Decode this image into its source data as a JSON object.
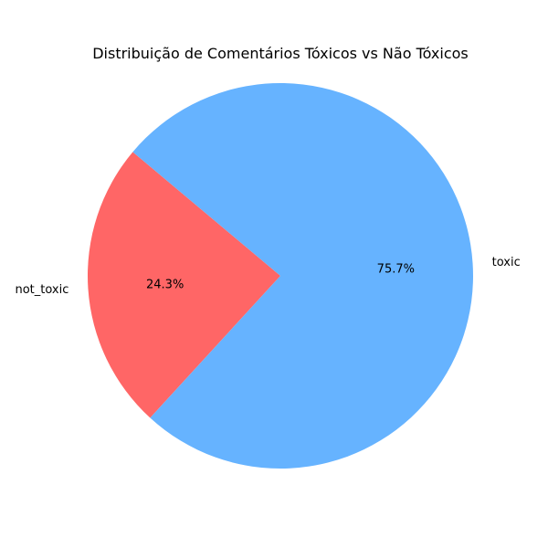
{
  "chart_data": {
    "type": "pie",
    "title": "Distribuição de Comentários Tóxicos vs Não Tóxicos",
    "slices": [
      {
        "label": "not_toxic",
        "value": 24.3,
        "pct_label": "24.3%",
        "color": "#ff6666"
      },
      {
        "label": "toxic",
        "value": 75.7,
        "pct_label": "75.7%",
        "color": "#66b3ff"
      }
    ],
    "legend": "none"
  }
}
